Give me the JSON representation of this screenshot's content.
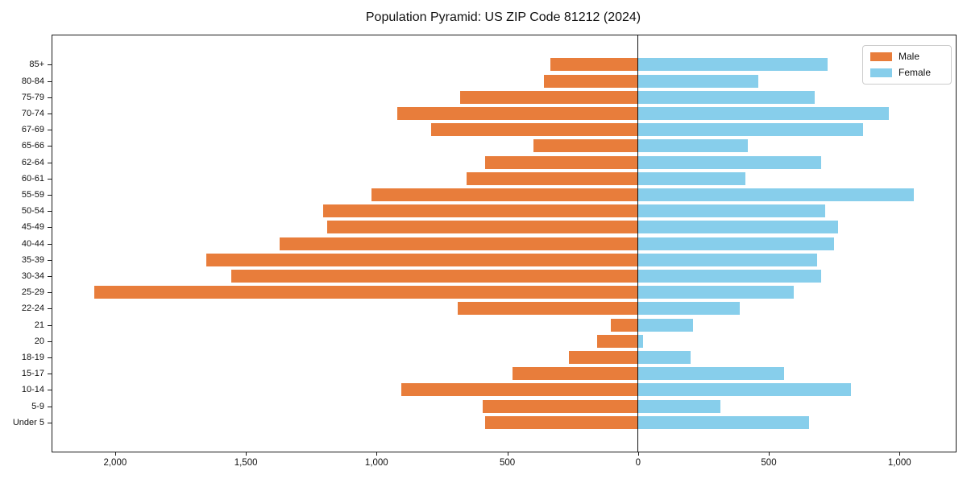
{
  "title": "Population Pyramid: US ZIP Code 81212 (2024)",
  "colors": {
    "male": "#e87d3b",
    "female": "#87ceeb",
    "axis": "#1a1a1a",
    "background": "#ffffff"
  },
  "legend": {
    "position": "upper right",
    "male_label": "Male",
    "female_label": "Female"
  },
  "chart_data": {
    "type": "bar",
    "subtype": "population-pyramid",
    "title": "Population Pyramid: US ZIP Code 81212 (2024)",
    "orientation": "horizontal",
    "categories_top_to_bottom": [
      "85+",
      "80-84",
      "75-79",
      "70-74",
      "67-69",
      "65-66",
      "62-64",
      "60-61",
      "55-59",
      "50-54",
      "45-49",
      "40-44",
      "35-39",
      "30-34",
      "25-29",
      "22-24",
      "21",
      "20",
      "18-19",
      "15-17",
      "10-14",
      "5-9",
      "Under 5"
    ],
    "series": [
      {
        "name": "Male",
        "side": "left",
        "color": "#e87d3b",
        "values": [
          335,
          360,
          680,
          920,
          790,
          400,
          585,
          655,
          1020,
          1205,
          1190,
          1370,
          1650,
          1555,
          2080,
          690,
          105,
          155,
          265,
          480,
          905,
          595,
          585
        ]
      },
      {
        "name": "Female",
        "side": "right",
        "color": "#87ceeb",
        "values": [
          725,
          460,
          675,
          960,
          860,
          420,
          700,
          410,
          1055,
          715,
          765,
          750,
          685,
          700,
          595,
          390,
          210,
          20,
          200,
          560,
          815,
          315,
          655
        ]
      }
    ],
    "x_axis": {
      "tick_values": [
        -2000,
        -1500,
        -1000,
        -500,
        0,
        500,
        1000
      ],
      "tick_labels": [
        "2,000",
        "1,500",
        "1,000",
        "500",
        "0",
        "500",
        "1,000"
      ],
      "range": [
        -2240,
        1215
      ],
      "grid": false,
      "zero_line": true
    },
    "legend_entries": [
      "Male",
      "Female"
    ]
  }
}
